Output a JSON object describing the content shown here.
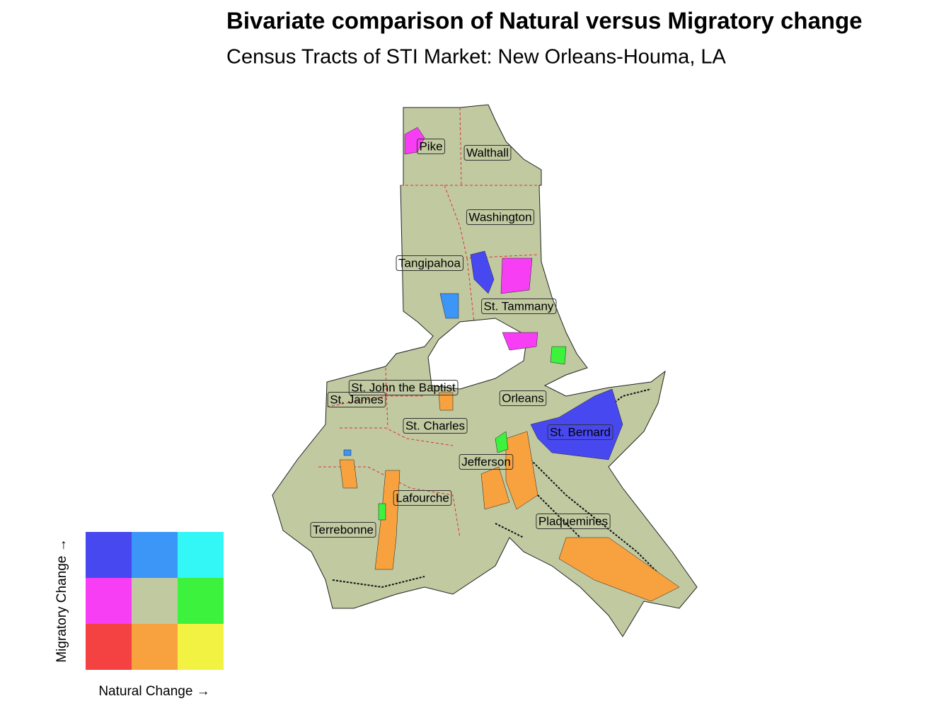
{
  "title": "Bivariate comparison of Natural versus Migratory change",
  "subtitle": "Census Tracts of STI Market: New Orleans-Houma, LA",
  "labels": [
    "Pike",
    "Walthall",
    "Washington",
    "Tangipahoa",
    "St. Tammany",
    "St. John the Baptist",
    "St. James",
    "Orleans",
    "St. Charles",
    "St. Bernard",
    "Jefferson",
    "Lafourche",
    "Terrebonne",
    "Plaquemines"
  ],
  "legend": {
    "x_label": "Natural Change →",
    "y_label": "Migratory Change →",
    "colors": [
      [
        "#4848f0",
        "#3c96f8",
        "#33f6f6"
      ],
      [
        "#f73ef4",
        "#c1c9a1",
        "#3df23d"
      ],
      [
        "#f44242",
        "#f7a23f",
        "#f2f242"
      ]
    ]
  }
}
